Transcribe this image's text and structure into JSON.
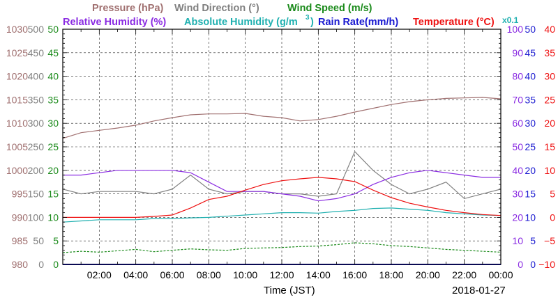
{
  "legend": {
    "row1": [
      {
        "text": "Pressure (hPa)",
        "color": "#a07070"
      },
      {
        "text": "Wind Direction (°)",
        "color": "#808080"
      },
      {
        "text": "Wind Speed (m/s)",
        "color": "#1a8a1a"
      }
    ],
    "row2": [
      {
        "text": "Relative Humidity (%)",
        "color": "#8a2be2"
      },
      {
        "text": "Absolute Humidity (g/m",
        "color": "#20b0b0"
      },
      {
        "text": "3",
        "color": "#20b0b0"
      },
      {
        "text": ")",
        "color": "#20b0b0"
      },
      {
        "text": "Rain Rate(mm/h)",
        "color": "#1a1ad0"
      },
      {
        "text": "Temperature (°C)",
        "color": "#ee1111"
      },
      {
        "text": "x0.1",
        "color": "#20b0b0"
      }
    ]
  },
  "axes": {
    "pressure_ticks": [
      "980",
      "985",
      "990",
      "995",
      "1000",
      "1005",
      "1010",
      "1015",
      "1020",
      "1025",
      "1030"
    ],
    "direction_ticks": [
      "0",
      "50",
      "100",
      "150",
      "200",
      "250",
      "300",
      "350",
      "400",
      "450",
      "500"
    ],
    "speed_ticks": [
      "0",
      "5",
      "10",
      "15",
      "20",
      "25",
      "30",
      "35",
      "40",
      "45",
      "50"
    ],
    "rh_ticks": [
      "0",
      "10",
      "20",
      "30",
      "40",
      "50",
      "60",
      "70",
      "80",
      "90",
      "100"
    ],
    "rain_ticks": [
      "0",
      "5",
      "10",
      "15",
      "20",
      "25",
      "30",
      "35",
      "40",
      "45",
      "50"
    ],
    "temp_ticks": [
      "−10",
      "−5",
      "0",
      "5",
      "10",
      "15",
      "20",
      "25",
      "30",
      "35",
      "40"
    ],
    "x_ticks": [
      "02:00",
      "04:00",
      "06:00",
      "08:00",
      "10:00",
      "12:00",
      "14:00",
      "16:00",
      "18:00",
      "20:00",
      "22:00",
      "00:00"
    ],
    "xlabel": "Time (JST)",
    "date": "2018-01-27"
  },
  "chart_data": {
    "type": "line",
    "x_unit": "hours since 00:00 JST, 2018-01-27",
    "x": [
      0,
      1,
      2,
      3,
      4,
      5,
      6,
      7,
      8,
      9,
      10,
      11,
      12,
      13,
      14,
      15,
      16,
      17,
      18,
      19,
      20,
      21,
      22,
      23,
      24
    ],
    "series": [
      {
        "name": "Pressure (hPa)",
        "axis": "pressure",
        "color": "#a07070",
        "values": [
          1006.8,
          1008.0,
          1008.5,
          1009.0,
          1009.6,
          1010.5,
          1011.2,
          1011.8,
          1012.0,
          1012.0,
          1012.1,
          1011.5,
          1011.2,
          1010.5,
          1010.8,
          1011.5,
          1012.4,
          1013.2,
          1014.0,
          1014.6,
          1015.0,
          1015.3,
          1015.4,
          1015.5,
          1015.2
        ]
      },
      {
        "name": "Wind Direction (°)",
        "axis": "direction",
        "color": "#808080",
        "values": [
          160,
          150,
          155,
          155,
          155,
          150,
          160,
          190,
          160,
          150,
          155,
          155,
          150,
          150,
          145,
          150,
          240,
          200,
          170,
          150,
          160,
          175,
          140,
          150,
          160
        ]
      },
      {
        "name": "Wind Speed (m/s)",
        "axis": "speed",
        "color": "#1a8a1a",
        "values": [
          2.5,
          2.8,
          2.6,
          2.9,
          3.2,
          2.7,
          3.0,
          3.3,
          3.1,
          3.0,
          3.4,
          3.5,
          3.6,
          3.8,
          3.9,
          4.2,
          4.6,
          4.4,
          4.0,
          3.8,
          3.5,
          3.2,
          3.0,
          2.8,
          2.6
        ]
      },
      {
        "name": "Relative Humidity (%)",
        "axis": "rh",
        "color": "#8a2be2",
        "values": [
          38,
          38,
          39,
          40,
          40,
          40,
          40,
          39,
          35,
          31,
          31,
          31,
          30,
          29,
          27,
          28,
          30,
          34,
          37,
          39,
          40,
          39,
          38,
          37,
          37
        ]
      },
      {
        "name": "Absolute Humidity (g/m3) x0.1",
        "axis": "rh",
        "color": "#20b0b0",
        "values": [
          18,
          18.5,
          19,
          19,
          19,
          19.5,
          19.5,
          19.8,
          20,
          20.5,
          21,
          21.5,
          22,
          22,
          21.8,
          22.5,
          23,
          23.8,
          24,
          23.5,
          23,
          22,
          21.5,
          21,
          20.8
        ]
      },
      {
        "name": "Rain Rate(mm/h)",
        "axis": "rain",
        "color": "#1a1ad0",
        "values": [
          0,
          0,
          0,
          0,
          0,
          0,
          0,
          0,
          0,
          0,
          0,
          0,
          0,
          0,
          0,
          0,
          0,
          0,
          0,
          0,
          0,
          0,
          0,
          0,
          0
        ]
      },
      {
        "name": "Temperature (°C)",
        "axis": "temp",
        "color": "#ee1111",
        "values": [
          0,
          0,
          0,
          0,
          0,
          0.2,
          0.5,
          2,
          3.8,
          4.5,
          5.8,
          7,
          7.8,
          8.2,
          8.5,
          8.2,
          7.6,
          5.8,
          4.2,
          3,
          2.2,
          1.5,
          1,
          0.6,
          0.4
        ]
      }
    ]
  }
}
